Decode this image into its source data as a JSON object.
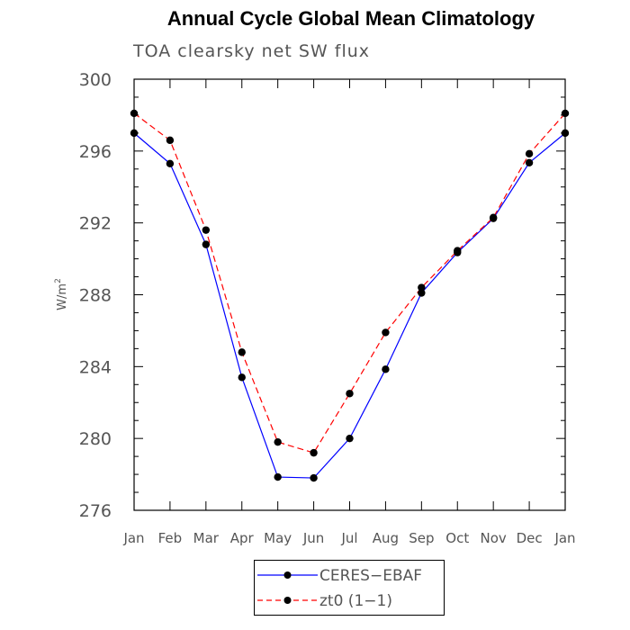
{
  "chart_data": {
    "type": "line",
    "title": "Annual Cycle Global Mean Climatology",
    "subtitle": "TOA clearsky net SW flux",
    "ylabel_base": "W/m",
    "ylabel_sup": "2",
    "ylim": [
      276,
      300
    ],
    "yticks": [
      276,
      280,
      284,
      288,
      292,
      296,
      300
    ],
    "categories": [
      "Jan",
      "Feb",
      "Mar",
      "Apr",
      "May",
      "Jun",
      "Jul",
      "Aug",
      "Sep",
      "Oct",
      "Nov",
      "Dec",
      "Jan"
    ],
    "series": [
      {
        "name": "CERES−EBAF",
        "color": "#0000ff",
        "dash": "solid",
        "values": [
          297.0,
          295.3,
          290.8,
          283.4,
          277.85,
          277.8,
          280.0,
          283.85,
          288.1,
          290.35,
          292.25,
          295.35,
          297.0
        ]
      },
      {
        "name": "zt0 (1−1)",
        "color": "#ff0000",
        "dash": "dashed",
        "values": [
          298.1,
          296.6,
          291.6,
          284.8,
          279.8,
          279.2,
          282.5,
          285.9,
          288.4,
          290.45,
          292.3,
          295.85,
          298.1
        ]
      }
    ],
    "legend_position": "bottom-center",
    "grid": false
  }
}
